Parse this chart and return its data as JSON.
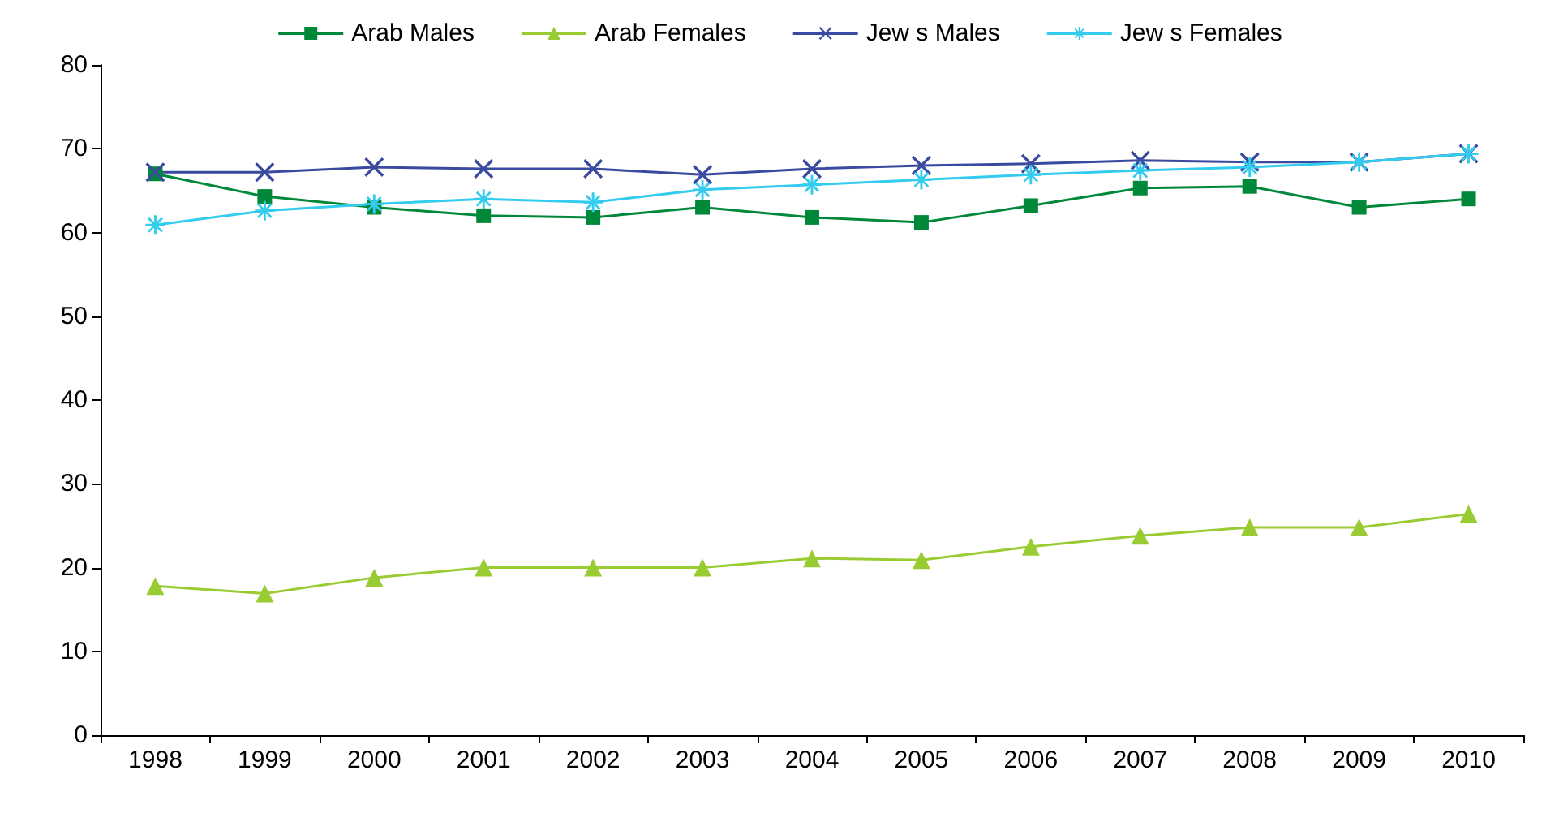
{
  "chart_data": {
    "type": "line",
    "categories": [
      "1998",
      "1999",
      "2000",
      "2001",
      "2002",
      "2003",
      "2004",
      "2005",
      "2006",
      "2007",
      "2008",
      "2009",
      "2010"
    ],
    "series": [
      {
        "name": "Arab Males",
        "color": "#00883a",
        "marker": "square",
        "values": [
          67.0,
          64.3,
          63.0,
          62.0,
          61.8,
          63.0,
          61.8,
          61.2,
          63.2,
          65.3,
          65.5,
          63.0,
          64.0
        ]
      },
      {
        "name": "Arab Females",
        "color": "#99cc33",
        "marker": "triangle",
        "values": [
          17.8,
          16.9,
          18.8,
          20.0,
          20.0,
          20.0,
          21.1,
          20.9,
          22.5,
          23.8,
          24.8,
          24.8,
          26.4
        ]
      },
      {
        "name": "Jew s Males",
        "color": "#3a4aa0",
        "marker": "cross",
        "values": [
          67.2,
          67.2,
          67.8,
          67.6,
          67.6,
          66.9,
          67.6,
          68.0,
          68.2,
          68.6,
          68.4,
          68.4,
          69.4
        ]
      },
      {
        "name": "Jew s Females",
        "color": "#33ccee",
        "marker": "star",
        "values": [
          60.9,
          62.6,
          63.4,
          64.0,
          63.6,
          65.1,
          65.7,
          66.3,
          66.9,
          67.4,
          67.8,
          68.4,
          69.4
        ]
      }
    ],
    "ylim": [
      0,
      80
    ],
    "yticks": [
      0,
      10,
      20,
      30,
      40,
      50,
      60,
      70,
      80
    ],
    "grid": false,
    "legend": "top"
  }
}
